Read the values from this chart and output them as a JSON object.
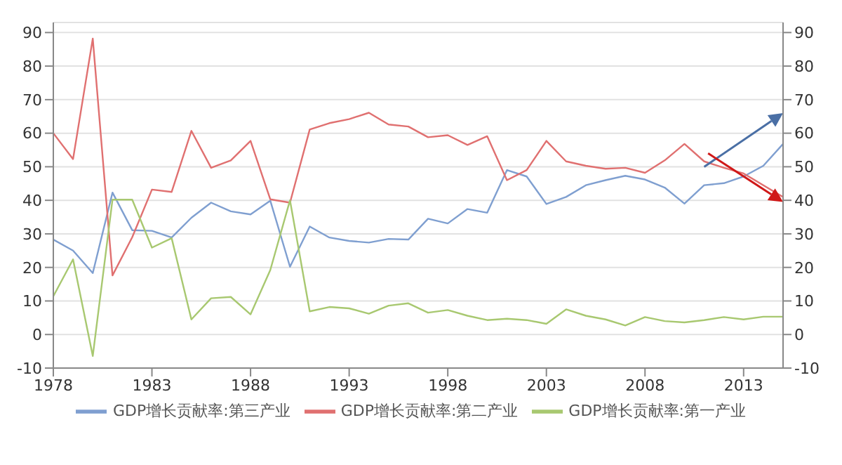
{
  "chart_data": {
    "type": "line",
    "x": [
      1978,
      1979,
      1980,
      1981,
      1982,
      1983,
      1984,
      1985,
      1986,
      1987,
      1988,
      1989,
      1990,
      1991,
      1992,
      1993,
      1994,
      1995,
      1996,
      1997,
      1998,
      1999,
      2000,
      2001,
      2002,
      2003,
      2004,
      2005,
      2006,
      2007,
      2008,
      2009,
      2010,
      2011,
      2012,
      2013,
      2014,
      2015
    ],
    "series": [
      {
        "name": "GDP增长贡献率:第三产业",
        "color": "#7f9fd0",
        "values": [
          28.3,
          25,
          18.3,
          42.3,
          31.1,
          30.9,
          28.9,
          34.8,
          39.3,
          36.7,
          35.8,
          39.9,
          20.2,
          32.2,
          28.9,
          27.9,
          27.4,
          28.5,
          28.3,
          34.5,
          33.1,
          37.4,
          36.3,
          49,
          47.1,
          38.9,
          41,
          44.5,
          46,
          47.3,
          46.2,
          43.8,
          39,
          44.5,
          45.1,
          47.1,
          50.3,
          56.8
        ]
      },
      {
        "name": "GDP增长贡献率:第二产业",
        "color": "#e07070",
        "values": [
          60,
          52.3,
          88.2,
          17.6,
          29,
          43.2,
          42.5,
          60.7,
          49.7,
          51.9,
          57.7,
          40.3,
          39.3,
          61.1,
          63,
          64.2,
          66.1,
          62.6,
          62,
          58.8,
          59.4,
          56.5,
          59.1,
          46,
          49,
          57.7,
          51.6,
          50.3,
          49.4,
          49.7,
          48.2,
          51.9,
          56.8,
          51.6,
          49.7,
          48,
          44.5,
          41
        ]
      },
      {
        "name": "GDP增长贡献率:第一产业",
        "color": "#a8c870",
        "values": [
          11.4,
          22.4,
          -6.4,
          40.2,
          40.2,
          25.9,
          28.7,
          4.5,
          10.8,
          11.2,
          6,
          19.2,
          40,
          6.9,
          8.2,
          7.8,
          6.2,
          8.6,
          9.3,
          6.5,
          7.3,
          5.6,
          4.3,
          4.7,
          4.3,
          3.2,
          7.5,
          5.6,
          4.5,
          2.7,
          5.2,
          4,
          3.6,
          4.3,
          5.2,
          4.5,
          5.3,
          5.3
        ]
      }
    ],
    "xlim": [
      1978,
      2015
    ],
    "xticks": [
      1978,
      1983,
      1988,
      1993,
      1998,
      2003,
      2008,
      2013
    ],
    "ylim": [
      -10,
      93
    ],
    "yticks": [
      -10,
      0,
      10,
      20,
      30,
      40,
      50,
      60,
      70,
      80,
      90
    ],
    "y2lim": [
      -10,
      93
    ],
    "y2ticks": [
      -10,
      0,
      10,
      20,
      30,
      40,
      50,
      60,
      70,
      80,
      90
    ],
    "grid": "y",
    "legend": "bottom",
    "marker": "none",
    "line_style": "solid"
  }
}
